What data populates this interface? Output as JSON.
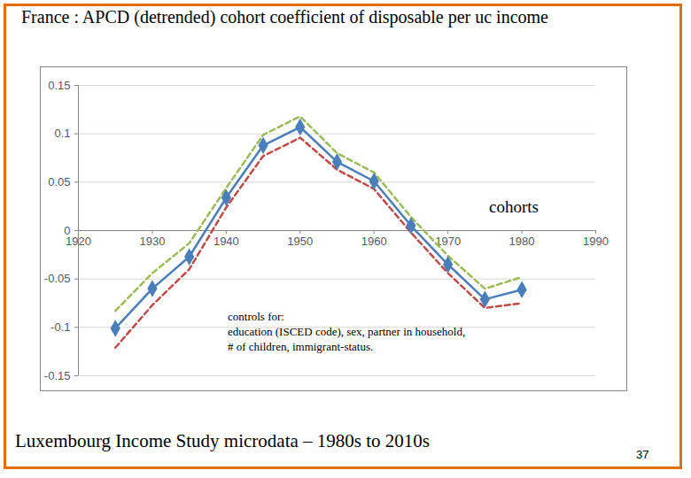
{
  "chart_data": {
    "type": "line",
    "title": "France : APCD (detrended) cohort coefficient of disposable per uc income",
    "x": [
      1925,
      1930,
      1935,
      1940,
      1945,
      1950,
      1955,
      1960,
      1965,
      1970,
      1975,
      1980
    ],
    "series": [
      {
        "color": "#9bbb59",
        "line_style": "dashed",
        "marker": "none",
        "values": [
          -0.083,
          -0.044,
          -0.013,
          0.044,
          0.099,
          0.118,
          0.08,
          0.06,
          0.014,
          -0.026,
          -0.06,
          -0.048
        ]
      },
      {
        "color": "#be4b48",
        "line_style": "dashed",
        "marker": "none",
        "values": [
          -0.121,
          -0.077,
          -0.04,
          0.024,
          0.077,
          0.096,
          0.063,
          0.043,
          -0.002,
          -0.044,
          -0.08,
          -0.075
        ]
      },
      {
        "color": "#4a7ebb",
        "line_style": "solid",
        "marker": "diamond",
        "values": [
          -0.101,
          -0.06,
          -0.027,
          0.034,
          0.088,
          0.107,
          0.071,
          0.051,
          0.005,
          -0.035,
          -0.071,
          -0.061
        ]
      }
    ],
    "xlim": [
      1920,
      1990
    ],
    "xticks": [
      1920,
      1930,
      1940,
      1950,
      1960,
      1970,
      1980,
      1990
    ],
    "ylim": [
      -0.15,
      0.15
    ],
    "yticks": [
      -0.15,
      -0.1,
      -0.05,
      0,
      0.05,
      0.1,
      0.15
    ],
    "grid": true,
    "annotations": [
      "cohorts",
      "controls for:\neducation (ISCED code), sex, partner in household,\n# of children, immigrant-status."
    ],
    "source": "Luxembourg Income Study microdata – 1980s to 2010s",
    "page_number": "37"
  }
}
